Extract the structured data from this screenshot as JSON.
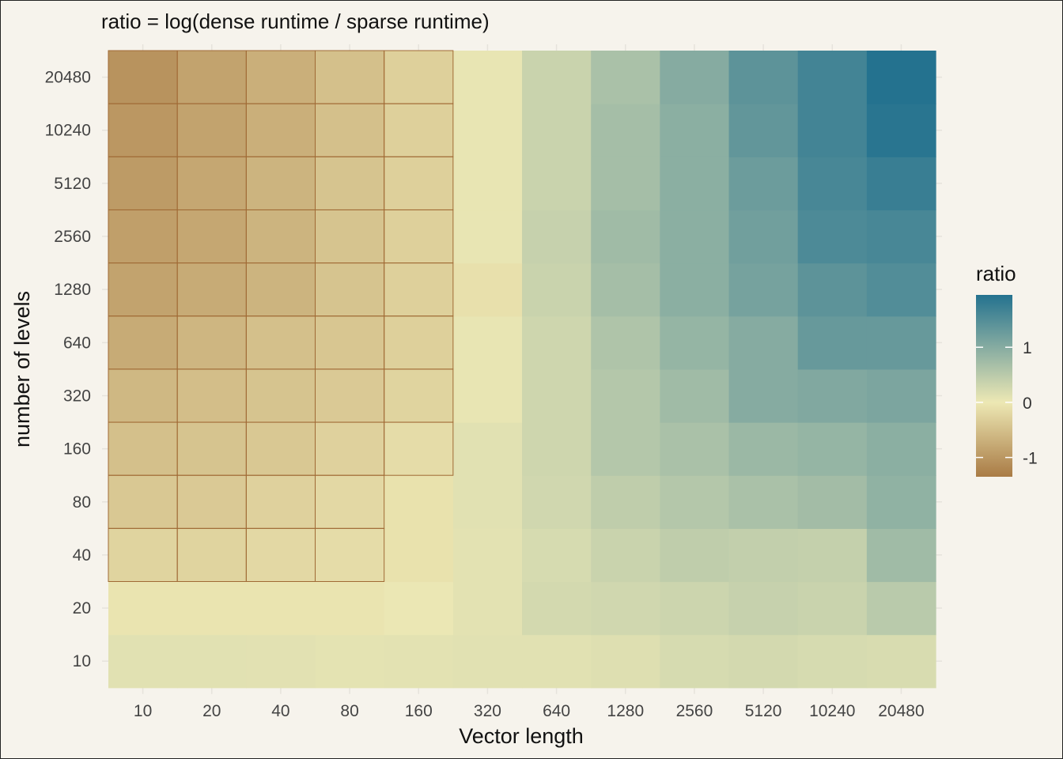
{
  "chart_data": {
    "type": "heatmap",
    "title": "ratio = log(dense runtime / sparse runtime)",
    "xlabel": "Vector length",
    "ylabel": "number of levels",
    "x": [
      "10",
      "20",
      "40",
      "80",
      "160",
      "320",
      "640",
      "1280",
      "2560",
      "5120",
      "10240",
      "20480"
    ],
    "y": [
      "10",
      "20",
      "40",
      "80",
      "160",
      "320",
      "640",
      "1280",
      "2560",
      "5120",
      "10240",
      "20480"
    ],
    "values": [
      [
        0.12,
        0.12,
        0.11,
        0.09,
        0.1,
        0.12,
        0.12,
        0.15,
        0.22,
        0.25,
        0.22,
        0.2
      ],
      [
        -0.05,
        -0.05,
        -0.05,
        -0.05,
        0.02,
        0.1,
        0.25,
        0.28,
        0.32,
        0.38,
        0.35,
        0.5
      ],
      [
        -0.25,
        -0.25,
        -0.2,
        -0.15,
        -0.08,
        0.1,
        0.22,
        0.35,
        0.45,
        0.42,
        0.4,
        0.75
      ],
      [
        -0.4,
        -0.38,
        -0.28,
        -0.2,
        -0.08,
        0.12,
        0.28,
        0.45,
        0.55,
        0.65,
        0.72,
        0.9
      ],
      [
        -0.5,
        -0.45,
        -0.4,
        -0.28,
        -0.15,
        0.12,
        0.3,
        0.55,
        0.65,
        0.8,
        0.85,
        0.95
      ],
      [
        -0.6,
        -0.52,
        -0.45,
        -0.38,
        -0.25,
        0.05,
        0.3,
        0.55,
        0.75,
        1.0,
        1.05,
        1.1
      ],
      [
        -0.75,
        -0.62,
        -0.5,
        -0.42,
        -0.3,
        0.05,
        0.3,
        0.6,
        0.85,
        1.0,
        1.3,
        1.3
      ],
      [
        -0.85,
        -0.75,
        -0.65,
        -0.45,
        -0.3,
        -0.1,
        0.35,
        0.7,
        0.95,
        1.15,
        1.4,
        1.5
      ],
      [
        -0.9,
        -0.8,
        -0.65,
        -0.45,
        -0.3,
        0.05,
        0.38,
        0.75,
        0.95,
        1.2,
        1.55,
        1.6
      ],
      [
        -0.95,
        -0.8,
        -0.65,
        -0.45,
        -0.3,
        0.05,
        0.35,
        0.7,
        0.95,
        1.25,
        1.6,
        1.75
      ],
      [
        -1.0,
        -0.85,
        -0.7,
        -0.5,
        -0.3,
        0.05,
        0.35,
        0.7,
        0.95,
        1.35,
        1.65,
        1.9
      ],
      [
        -1.05,
        -0.85,
        -0.7,
        -0.5,
        -0.3,
        0.05,
        0.35,
        0.65,
        1.0,
        1.4,
        1.65,
        1.95
      ]
    ],
    "outlined_cells": [
      [
        2,
        0
      ],
      [
        2,
        1
      ],
      [
        2,
        2
      ],
      [
        2,
        3
      ],
      [
        3,
        0
      ],
      [
        3,
        1
      ],
      [
        3,
        2
      ],
      [
        3,
        3
      ],
      [
        4,
        0
      ],
      [
        4,
        1
      ],
      [
        4,
        2
      ],
      [
        4,
        3
      ],
      [
        4,
        4
      ],
      [
        5,
        0
      ],
      [
        5,
        1
      ],
      [
        5,
        2
      ],
      [
        5,
        3
      ],
      [
        5,
        4
      ],
      [
        6,
        0
      ],
      [
        6,
        1
      ],
      [
        6,
        2
      ],
      [
        6,
        3
      ],
      [
        6,
        4
      ],
      [
        7,
        0
      ],
      [
        7,
        1
      ],
      [
        7,
        2
      ],
      [
        7,
        3
      ],
      [
        7,
        4
      ],
      [
        8,
        0
      ],
      [
        8,
        1
      ],
      [
        8,
        2
      ],
      [
        8,
        3
      ],
      [
        8,
        4
      ],
      [
        9,
        0
      ],
      [
        9,
        1
      ],
      [
        9,
        2
      ],
      [
        9,
        3
      ],
      [
        9,
        4
      ],
      [
        10,
        0
      ],
      [
        10,
        1
      ],
      [
        10,
        2
      ],
      [
        10,
        3
      ],
      [
        10,
        4
      ],
      [
        11,
        0
      ],
      [
        11,
        1
      ],
      [
        11,
        2
      ],
      [
        11,
        3
      ],
      [
        11,
        4
      ]
    ],
    "legend": {
      "title": "ratio",
      "placement": "right",
      "ticks": [
        1,
        0,
        -1
      ],
      "tick_labels": [
        "1",
        "0",
        "-1"
      ],
      "range": [
        -1.35,
        1.95
      ]
    },
    "colors": {
      "low": "#a97b45",
      "mid": "#ede8b4",
      "high": "#24728f",
      "outline": "#a06a35",
      "background": "#f6f3ec"
    },
    "grid": true
  }
}
